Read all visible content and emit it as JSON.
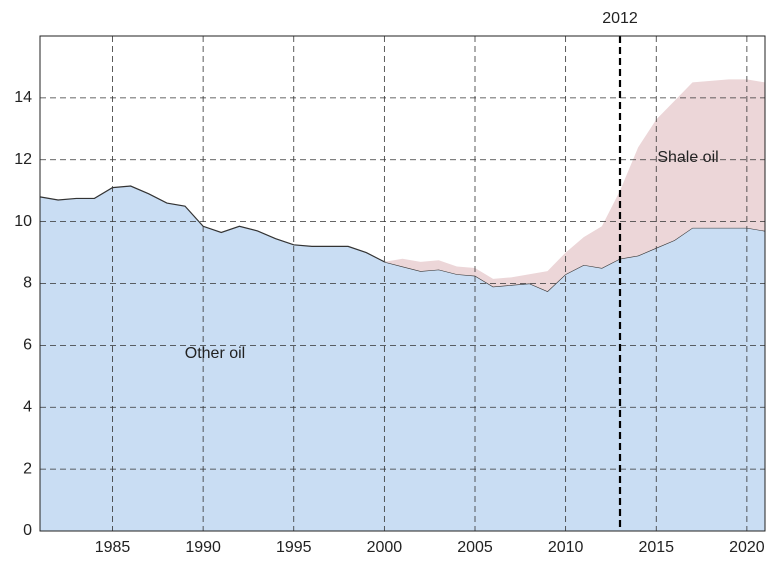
{
  "chart_data": {
    "type": "stacked_area",
    "x": [
      1981,
      1982,
      1983,
      1984,
      1985,
      1986,
      1987,
      1988,
      1989,
      1990,
      1991,
      1992,
      1993,
      1994,
      1995,
      1996,
      1997,
      1998,
      1999,
      2000,
      2001,
      2002,
      2003,
      2004,
      2005,
      2006,
      2007,
      2008,
      2009,
      2010,
      2011,
      2012,
      2013,
      2014,
      2015,
      2016,
      2017,
      2018,
      2019,
      2020,
      2021
    ],
    "series": [
      {
        "name": "Other oil",
        "color": "#c9ddf3",
        "values": [
          10.8,
          10.7,
          10.75,
          10.75,
          11.1,
          11.15,
          10.9,
          10.6,
          10.5,
          9.85,
          9.65,
          9.85,
          9.7,
          9.45,
          9.25,
          9.2,
          9.2,
          9.2,
          9.0,
          8.7,
          8.55,
          8.4,
          8.45,
          8.3,
          8.25,
          7.9,
          7.95,
          8.0,
          7.75,
          8.3,
          8.6,
          8.5,
          8.8,
          8.9,
          9.15,
          9.4,
          9.8,
          9.8,
          9.8,
          9.8,
          9.7
        ]
      },
      {
        "name": "Shale oil",
        "color": "#ecd6d8",
        "values": [
          0,
          0,
          0,
          0,
          0,
          0,
          0,
          0,
          0,
          0,
          0,
          0,
          0,
          0,
          0,
          0,
          0,
          0,
          0,
          0,
          0.25,
          0.3,
          0.3,
          0.25,
          0.25,
          0.25,
          0.25,
          0.3,
          0.65,
          0.7,
          0.9,
          1.35,
          2.2,
          3.5,
          4.15,
          4.5,
          4.7,
          4.75,
          4.8,
          4.8,
          4.8
        ]
      }
    ],
    "xlim": [
      1981,
      2021
    ],
    "xticks": [
      1985,
      1990,
      1995,
      2000,
      2005,
      2010,
      2015,
      2020
    ],
    "ylim": [
      0,
      16
    ],
    "yticks": [
      0,
      2,
      4,
      6,
      8,
      10,
      12,
      14
    ],
    "grid": true,
    "annotation": {
      "text": "2012",
      "x": 2013
    }
  }
}
